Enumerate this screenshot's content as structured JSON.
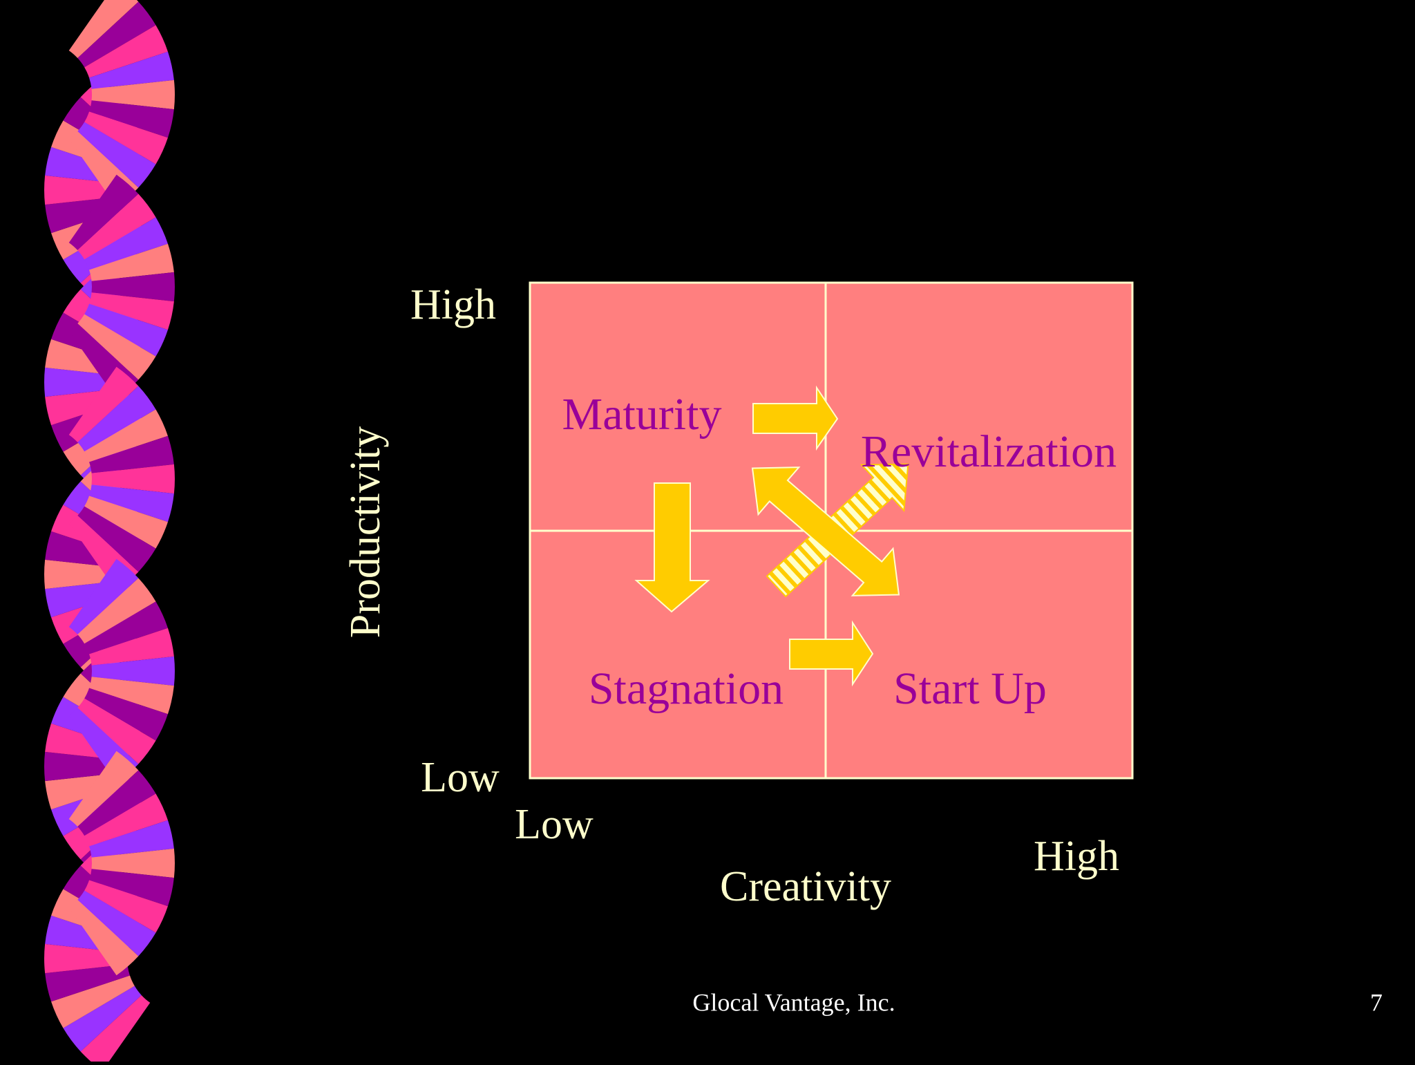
{
  "diagram": {
    "y_axis": {
      "label": "Productivity",
      "high": "High",
      "low": "Low"
    },
    "x_axis": {
      "label": "Creativity",
      "low": "Low",
      "high": "High"
    },
    "quadrants": {
      "top_left": "Maturity",
      "top_right": "Revitalization",
      "bottom_left": "Stagnation",
      "bottom_right": "Start Up"
    }
  },
  "footer": {
    "company": "Glocal Vantage, Inc.",
    "page": "7"
  }
}
